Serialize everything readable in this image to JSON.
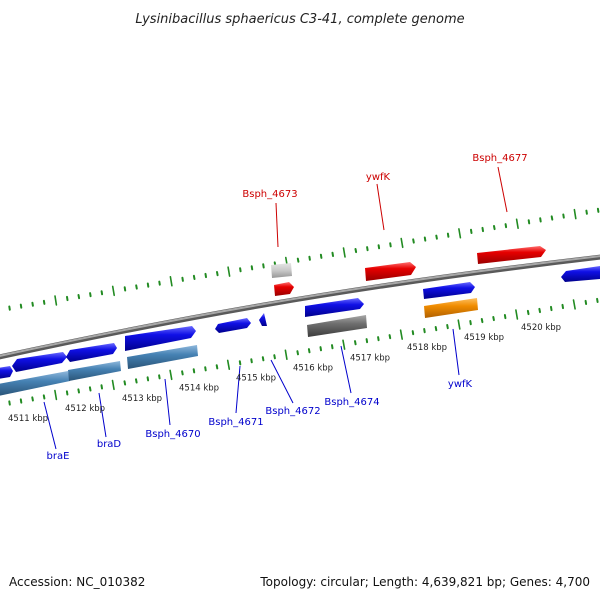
{
  "title": "Lysinibacillus sphaericus C3-41, complete genome",
  "footer": {
    "accession": "Accession: NC_010382",
    "summary": "Topology: circular; Length: 4,639,821 bp; Genes: 4,700"
  },
  "colors": {
    "forward_cds": "#1010e6",
    "reverse_cds": "#1010e6",
    "highlight": "#e60000",
    "pseudo": "#4682b4",
    "gray": "#6e6e6e",
    "light_gray": "#c8c8c8",
    "orange": "#f08c00",
    "tick": "#228b22",
    "backbone": "#8c8c8c",
    "label_blue": "#0000cc",
    "label_red": "#cc0000"
  },
  "scale": {
    "labels": [
      "4511 kbp",
      "4512 kbp",
      "4513 kbp",
      "4514 kbp",
      "4515 kbp",
      "4516 kbp",
      "4517 kbp",
      "4518 kbp",
      "4519 kbp",
      "4520 kbp"
    ]
  },
  "gene_labels": {
    "top": [
      "Bsph_4673",
      "ywfK",
      "Bsph_4677"
    ],
    "bottom": [
      "braE",
      "braD",
      "Bsph_4670",
      "Bsph_4671",
      "Bsph_4672",
      "Bsph_4674",
      "ywfK"
    ]
  }
}
